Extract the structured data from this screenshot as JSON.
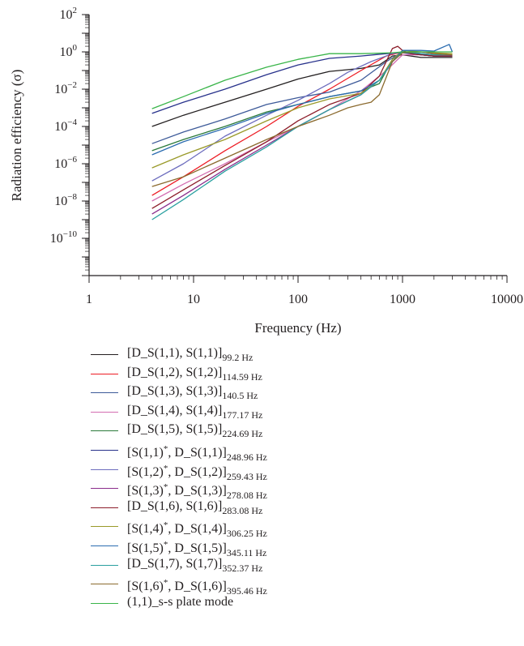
{
  "chart_data": {
    "type": "line",
    "xlabel": "Frequency (Hz)",
    "ylabel": "Radiation efficiency (σ)",
    "xscale": "log",
    "yscale": "log",
    "xlim": [
      1,
      10000
    ],
    "ylim": [
      1e-12,
      100
    ],
    "xticks": [
      {
        "value": 1,
        "label": "1"
      },
      {
        "value": 10,
        "label": "10"
      },
      {
        "value": 100,
        "label": "100"
      },
      {
        "value": 1000,
        "label": "1000"
      },
      {
        "value": 10000,
        "label": "10000"
      }
    ],
    "yticks": [
      {
        "value": 100,
        "base": "10",
        "exp": "2"
      },
      {
        "value": 1,
        "base": "10",
        "exp": "0"
      },
      {
        "value": 0.01,
        "base": "10",
        "exp": "−2"
      },
      {
        "value": 0.0001,
        "base": "10",
        "exp": "−4"
      },
      {
        "value": 1e-06,
        "base": "10",
        "exp": "−6"
      },
      {
        "value": 1e-08,
        "base": "10",
        "exp": "−8"
      },
      {
        "value": 1e-10,
        "base": "10",
        "exp": "−10"
      }
    ],
    "grid": false,
    "legend_position": "below",
    "series": [
      {
        "name": "[D_S(1,1), S(1,1)]",
        "main": "[D_S(1,1), S(1,1)]",
        "sup": "",
        "tail": "",
        "sub": "99.2 Hz",
        "color": "#231f20",
        "x": [
          4,
          8,
          20,
          50,
          100,
          200,
          400,
          600,
          800,
          1000,
          1500,
          2000,
          3000
        ],
        "y": [
          0.0001,
          0.0004,
          0.002,
          0.01,
          0.035,
          0.09,
          0.13,
          0.2,
          0.6,
          0.7,
          0.5,
          0.5,
          0.5
        ]
      },
      {
        "name": "[D_S(1,2), S(1,2)]",
        "main": "[D_S(1,2), S(1,2)]",
        "sup": "",
        "tail": "",
        "sub": "114.59 Hz",
        "color": "#ed1c24",
        "x": [
          4,
          8,
          20,
          50,
          100,
          200,
          400,
          700,
          1000,
          1500,
          2000,
          3000
        ],
        "y": [
          2e-08,
          2e-07,
          5e-06,
          0.0001,
          0.0012,
          0.01,
          0.1,
          0.6,
          1.0,
          0.7,
          0.6,
          0.6
        ]
      },
      {
        "name": "[D_S(1,3), S(1,3)]",
        "main": "[D_S(1,3), S(1,3)]",
        "sup": "",
        "tail": "",
        "sub": "140.5 Hz",
        "color": "#3d5a99",
        "x": [
          4,
          8,
          20,
          50,
          100,
          200,
          400,
          700,
          1000,
          1500,
          2000,
          3000
        ],
        "y": [
          1.2e-05,
          5e-05,
          0.00025,
          0.0015,
          0.0035,
          0.007,
          0.03,
          0.3,
          1.0,
          0.7,
          0.6,
          0.6
        ]
      },
      {
        "name": "[D_S(1,4), S(1,4)]",
        "main": "[D_S(1,4), S(1,4)]",
        "sup": "",
        "tail": "",
        "sub": "177.17 Hz",
        "color": "#d36eb2",
        "x": [
          4,
          8,
          20,
          50,
          100,
          200,
          400,
          700,
          1000,
          1500,
          2000,
          3000
        ],
        "y": [
          1e-08,
          8e-08,
          1e-06,
          1.5e-05,
          0.0001,
          0.0008,
          0.008,
          0.1,
          0.7,
          0.7,
          0.6,
          0.6
        ]
      },
      {
        "name": "[D_S(1,5), S(1,5)]",
        "main": "[D_S(1,5), S(1,5)]",
        "sup": "",
        "tail": "",
        "sub": "224.69 Hz",
        "color": "#2a7a3a",
        "x": [
          4,
          8,
          20,
          50,
          100,
          200,
          300,
          400,
          600,
          800,
          1000,
          1500,
          2000,
          3000
        ],
        "y": [
          5e-06,
          2e-05,
          0.0001,
          0.0006,
          0.0015,
          0.004,
          0.006,
          0.008,
          0.02,
          0.4,
          1.0,
          0.8,
          0.6,
          0.6
        ]
      },
      {
        "name": "[S(1,1)*, D_S(1,1)]",
        "main": "[S(1,1)",
        "sup": "*",
        "tail": ", D_S(1,1)]",
        "sub": "248.96 Hz",
        "color": "#27318b",
        "x": [
          4,
          8,
          20,
          50,
          100,
          200,
          400,
          700,
          900,
          1000,
          1500,
          2000,
          3000
        ],
        "y": [
          0.0005,
          0.002,
          0.01,
          0.06,
          0.2,
          0.45,
          0.6,
          0.8,
          0.9,
          0.9,
          0.7,
          0.6,
          0.6
        ]
      },
      {
        "name": "[S(1,2)*, D_S(1,2)]",
        "main": "[S(1,2)",
        "sup": "*",
        "tail": ", D_S(1,2)]",
        "sub": "259.43 Hz",
        "color": "#6d6dbe",
        "x": [
          4,
          8,
          20,
          50,
          100,
          200,
          300,
          500,
          800,
          1000,
          1500,
          2000,
          3000
        ],
        "y": [
          1.2e-07,
          1e-06,
          3e-05,
          0.0004,
          0.0025,
          0.02,
          0.08,
          0.3,
          0.8,
          1.0,
          0.8,
          0.7,
          0.7
        ]
      },
      {
        "name": "[S(1,3)*, D_S(1,3)]",
        "main": "[S(1,3)",
        "sup": "*",
        "tail": ", D_S(1,3)]",
        "sub": "278.08 Hz",
        "color": "#8a2c8c",
        "x": [
          4,
          8,
          20,
          50,
          100,
          200,
          400,
          600,
          800,
          1000,
          1500,
          2000,
          3000
        ],
        "y": [
          2e-09,
          2e-08,
          5e-07,
          1e-05,
          0.0001,
          0.0008,
          0.005,
          0.03,
          0.3,
          1.0,
          0.8,
          0.7,
          0.7
        ]
      },
      {
        "name": "[D_S(1,6), S(1,6)]",
        "main": "[D_S(1,6), S(1,6)]",
        "sup": "",
        "tail": "",
        "sub": "283.08 Hz",
        "color": "#8c1d2a",
        "x": [
          4,
          8,
          20,
          50,
          100,
          200,
          400,
          600,
          800,
          900,
          1000,
          1200,
          1500,
          2000,
          3000
        ],
        "y": [
          4e-09,
          4e-08,
          8e-07,
          1.5e-05,
          0.0002,
          0.0015,
          0.006,
          0.05,
          1.5,
          2.0,
          1.2,
          0.8,
          0.7,
          0.6,
          0.6
        ]
      },
      {
        "name": "[S(1,4)*, D_S(1,4)]",
        "main": "[S(1,4)",
        "sup": "*",
        "tail": ", D_S(1,4)]",
        "sub": "306.25 Hz",
        "color": "#9a9a2a",
        "x": [
          4,
          8,
          20,
          50,
          100,
          200,
          400,
          600,
          800,
          1000,
          1500,
          2000,
          3000
        ],
        "y": [
          6e-07,
          3e-06,
          2e-05,
          0.0002,
          0.001,
          0.003,
          0.006,
          0.03,
          0.4,
          1.2,
          1.0,
          0.9,
          0.8
        ]
      },
      {
        "name": "[S(1,5)*, D_S(1,5)]",
        "main": "[S(1,5)",
        "sup": "*",
        "tail": ", D_S(1,5)]",
        "sub": "345.11 Hz",
        "color": "#2b6cb0",
        "x": [
          4,
          8,
          20,
          50,
          100,
          200,
          400,
          600,
          800,
          1000,
          1500,
          2000,
          2800,
          3000
        ],
        "y": [
          3e-06,
          1.5e-05,
          8e-05,
          0.0005,
          0.0015,
          0.004,
          0.008,
          0.03,
          0.3,
          1.2,
          1.2,
          1.1,
          2.5,
          1.0
        ]
      },
      {
        "name": "[D_S(1,7), S(1,7)]",
        "main": "[D_S(1,7), S(1,7)]",
        "sup": "",
        "tail": "",
        "sub": "352.37 Hz",
        "color": "#2aa0a0",
        "x": [
          4,
          8,
          20,
          50,
          100,
          200,
          400,
          600,
          800,
          1000,
          1500,
          2000,
          3000
        ],
        "y": [
          1e-09,
          1.2e-08,
          4e-07,
          8e-06,
          0.0001,
          0.0008,
          0.005,
          0.03,
          0.3,
          1.0,
          0.8,
          0.7,
          0.7
        ]
      },
      {
        "name": "[S(1,6)*, D_S(1,6)]",
        "main": "[S(1,6)",
        "sup": "*",
        "tail": ", D_S(1,6)]",
        "sub": "395.46 Hz",
        "color": "#8b6a2e",
        "x": [
          4,
          8,
          20,
          50,
          100,
          200,
          300,
          400,
          500,
          600,
          800,
          1000,
          1500,
          2000,
          3000
        ],
        "y": [
          6e-08,
          2e-07,
          2e-06,
          2e-05,
          0.0001,
          0.0004,
          0.001,
          0.0015,
          0.002,
          0.005,
          0.3,
          0.9,
          1.0,
          0.8,
          0.7
        ]
      },
      {
        "name": "(1,1)_s-s plate mode",
        "main": "(1,1)_s-s plate mode",
        "sup": "",
        "tail": "",
        "sub": "",
        "color": "#3ab54a",
        "x": [
          4,
          8,
          20,
          50,
          100,
          200,
          400,
          800,
          1000,
          1500,
          2000,
          3000
        ],
        "y": [
          0.0009,
          0.004,
          0.03,
          0.15,
          0.4,
          0.8,
          0.8,
          0.9,
          1.0,
          1.0,
          1.0,
          1.0
        ]
      }
    ]
  }
}
